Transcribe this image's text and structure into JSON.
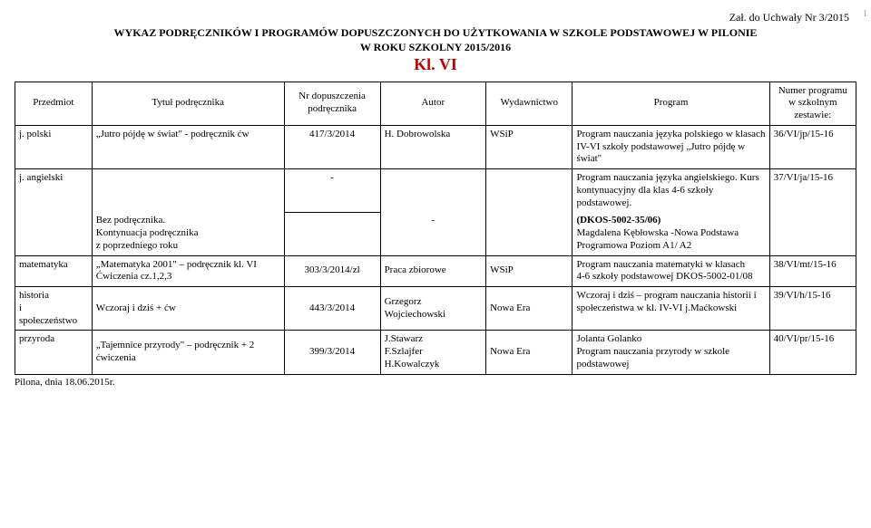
{
  "header": {
    "zal": "Zał. do Uchwały Nr 3/2015",
    "title1": "WYKAZ PODRĘCZNIKÓW I PROGRAMÓW DOPUSZCZONYCH DO UŻYTKOWANIA W SZKOLE PODSTAWOWEJ W PILONIE",
    "title2": "W ROKU SZKOLNY 2015/2016",
    "klasa": "Kl. VI",
    "page_num": "1"
  },
  "columns": {
    "c1": "Przedmiot",
    "c2": "Tytuł podręcznika",
    "c3": "Nr dopuszczenia podręcznika",
    "c4": "Autor",
    "c5": "Wydawnictwo",
    "c6": "Program",
    "c7": "Numer programu w szkolnym zestawie:"
  },
  "rows": {
    "polski": {
      "przedmiot": "j. polski",
      "tytul": "„Jutro pójdę w świat\" - podręcznik ćw",
      "nr": "417/3/2014",
      "autor": "H. Dobrowolska",
      "wyd": "WSiP",
      "program": "Program nauczania języka polskiego w klasach IV-VI szkoły podstawowej „Jutro pójdę w świat\"",
      "num": "36/VI/jp/15-16"
    },
    "ang1": {
      "przedmiot": "j. angielski",
      "nr": "-",
      "program_a": "Program nauczania języka angielskiego. Kurs kontynuacyjny dla klas 4-6 szkoły podstawowej. ",
      "program_b": "(DKOS-5002-35/06)",
      "program_c": "Magdalena Kębłowska -Nowa Podstawa Programowa Poziom A1/ A2",
      "num": "37/VI/ja/15-16"
    },
    "ang2": {
      "tytul": "Bez podręcznika.\nKontynuacja podręcznika\nz poprzedniego roku",
      "autor": "-"
    },
    "mat": {
      "przedmiot": "matematyka",
      "tytul": "„Matematyka 2001\" – podręcznik kl. VI\nĆwiczenia cz.1,2,3",
      "nr": "303/3/2014/zl",
      "autor": "Praca zbiorowe",
      "wyd": "WSiP",
      "program": "Program nauczania matematyki w klasach\n4-6 szkoły podstawowej DKOS-5002-01/08",
      "num": "38/VI/mt/15-16"
    },
    "hist": {
      "przedmiot": "historia\ni\nspołeczeństwo",
      "tytul": "Wczoraj i dziś + ćw",
      "nr": "443/3/2014",
      "autor": "Grzegorz Wojciechowski",
      "wyd": "Nowa Era",
      "program": "Wczoraj i dziś – program nauczania historii i społeczeństwa w kl. IV-VI j.Maćkowski",
      "num": "39/VI/h/15-16"
    },
    "przyr": {
      "przedmiot": "przyroda",
      "tytul": "„Tajemnice przyrody\" – podręcznik + 2 ćwiczenia",
      "nr": "399/3/2014",
      "autor": "J.Stawarz\nF.Szlajfer\nH.Kowalczyk",
      "wyd": "Nowa Era",
      "program": "Jolanta Golanko\nProgram nauczania przyrody w szkole podstawowej",
      "num": "40/VI/pr/15-16"
    }
  },
  "footer": "Pilona, dnia 18.06.2015r."
}
